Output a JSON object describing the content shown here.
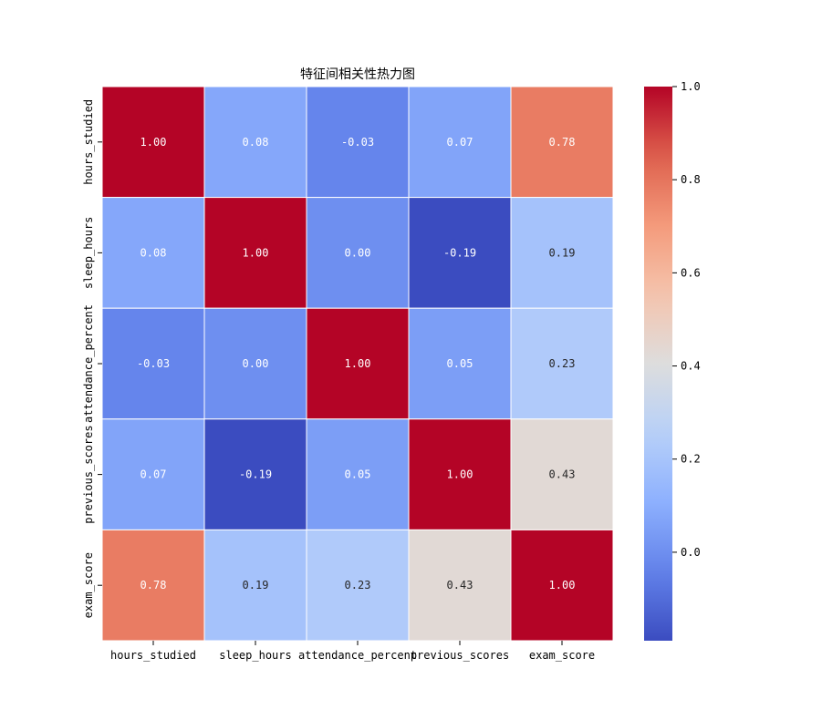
{
  "chart_data": {
    "type": "heatmap",
    "title": "特征间相关性热力图",
    "rows": [
      "hours_studied",
      "sleep_hours",
      "attendance_percent",
      "previous_scores",
      "exam_score"
    ],
    "columns": [
      "hours_studied",
      "sleep_hours",
      "attendance_percent",
      "previous_scores",
      "exam_score"
    ],
    "values": [
      [
        1.0,
        0.08,
        -0.03,
        0.07,
        0.78
      ],
      [
        0.08,
        1.0,
        0.0,
        -0.19,
        0.19
      ],
      [
        -0.03,
        0.0,
        1.0,
        0.05,
        0.23
      ],
      [
        0.07,
        -0.19,
        0.05,
        1.0,
        0.43
      ],
      [
        0.78,
        0.19,
        0.23,
        0.43,
        1.0
      ]
    ],
    "cell_labels": [
      [
        "1.00",
        "0.08",
        "-0.03",
        "0.07",
        "0.78"
      ],
      [
        "0.08",
        "1.00",
        "0.00",
        "-0.19",
        "0.19"
      ],
      [
        "-0.03",
        "0.00",
        "1.00",
        "0.05",
        "0.23"
      ],
      [
        "0.07",
        "-0.19",
        "0.05",
        "1.00",
        "0.43"
      ],
      [
        "0.78",
        "0.19",
        "0.23",
        "0.43",
        "1.00"
      ]
    ],
    "colormap": "coolwarm",
    "colorbar": {
      "range": [
        -0.19,
        1.0
      ],
      "ticks": [
        0.0,
        0.2,
        0.4,
        0.6,
        0.8,
        1.0
      ],
      "tick_labels": [
        "0.0",
        "0.2",
        "0.4",
        "0.6",
        "0.8",
        "1.0"
      ],
      "placement": "right"
    },
    "grid": true
  }
}
